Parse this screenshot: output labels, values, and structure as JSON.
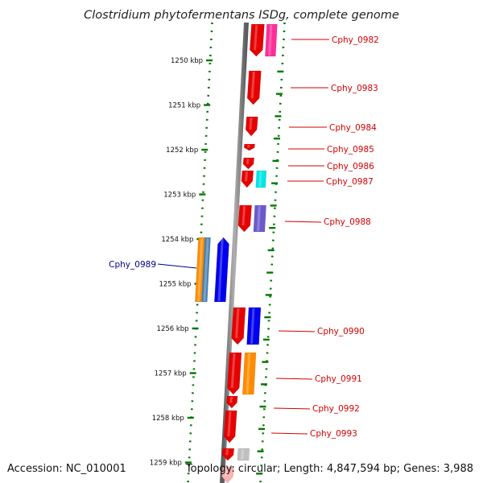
{
  "title": "Clostridium phytofermentans ISDg, complete genome",
  "accession_text": "Accession: NC_010001",
  "topology_text": "Topology: circular; Length: 4,847,594 bp; Genes: 3,988",
  "colors": {
    "forward_label": "#d40000",
    "reverse_label": "#00008b",
    "backbone": "#808080",
    "tick": "#007700"
  },
  "kbp_labels": [
    "1250 kbp",
    "1251 kbp",
    "1252 kbp",
    "1253 kbp",
    "1254 kbp",
    "1255 kbp",
    "1256 kbp",
    "1257 kbp",
    "1258 kbp",
    "1259 kbp"
  ],
  "gene_labels": [
    {
      "name": "Cphy_0982",
      "strand": "forward"
    },
    {
      "name": "Cphy_0983",
      "strand": "forward"
    },
    {
      "name": "Cphy_0984",
      "strand": "forward"
    },
    {
      "name": "Cphy_0985",
      "strand": "forward"
    },
    {
      "name": "Cphy_0986",
      "strand": "forward"
    },
    {
      "name": "Cphy_0987",
      "strand": "forward"
    },
    {
      "name": "Cphy_0988",
      "strand": "forward"
    },
    {
      "name": "Cphy_0989",
      "strand": "reverse"
    },
    {
      "name": "Cphy_0990",
      "strand": "forward"
    },
    {
      "name": "Cphy_0991",
      "strand": "forward"
    },
    {
      "name": "Cphy_0992",
      "strand": "forward"
    },
    {
      "name": "Cphy_0993",
      "strand": "forward"
    }
  ]
}
